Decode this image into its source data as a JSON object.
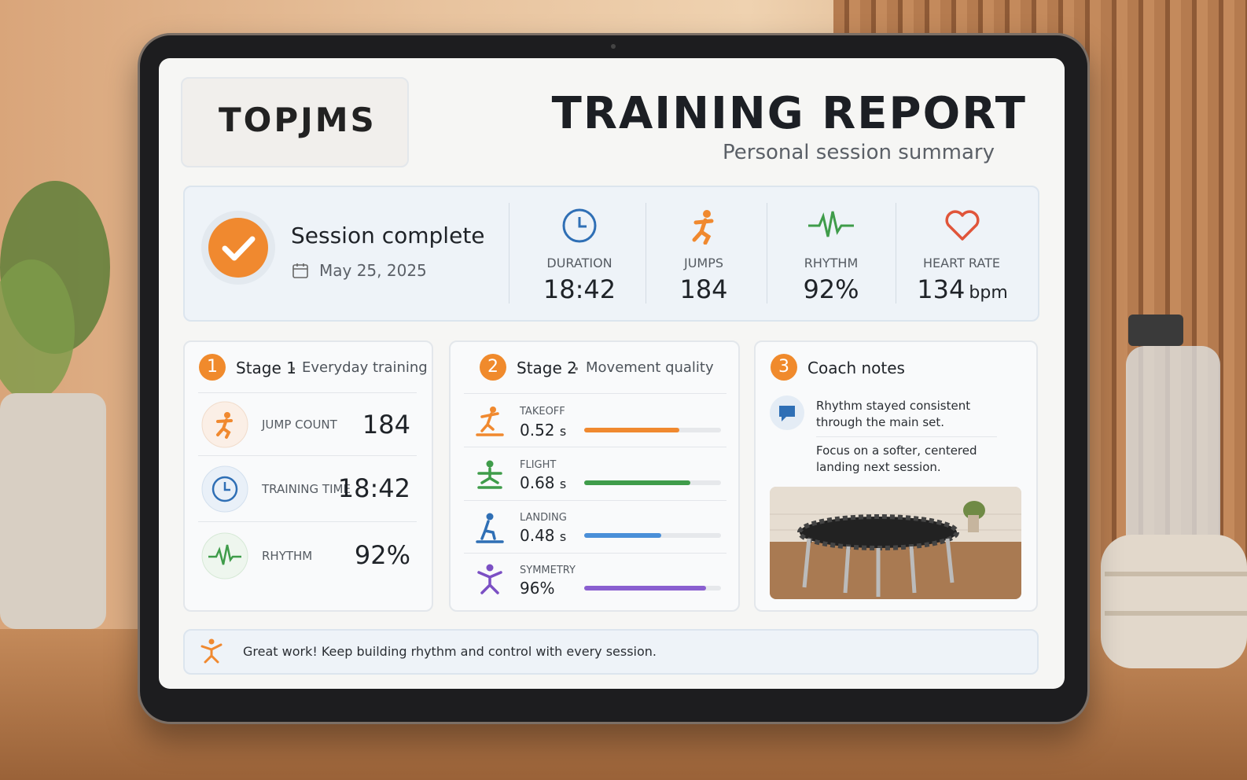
{
  "header": {
    "logo": "TOPJMS",
    "title": "TRAINING REPORT",
    "subtitle": "Personal session summary"
  },
  "summary": {
    "status": "Session complete",
    "date": "May 25, 2025",
    "metrics": [
      {
        "label": "DURATION",
        "value": "18:42"
      },
      {
        "label": "JUMPS",
        "value": "184"
      },
      {
        "label": "RHYTHM",
        "value": "92%"
      },
      {
        "label": "HEART RATE",
        "value": "134",
        "unit": "bpm"
      }
    ]
  },
  "stages": [
    {
      "number": "1",
      "title": "Stage 1",
      "subtitle": "Everyday training",
      "items": [
        {
          "label": "JUMP COUNT",
          "value": "184"
        },
        {
          "label": "TRAINING TIME",
          "value": "18:42"
        },
        {
          "label": "RHYTHM",
          "value": "92%"
        }
      ]
    },
    {
      "number": "2",
      "title": "Stage 2",
      "subtitle": "Movement quality",
      "items": [
        {
          "label": "TAKEOFF",
          "value": "0.52",
          "unit": "s"
        },
        {
          "label": "FLIGHT",
          "value": "0.68",
          "unit": "s"
        },
        {
          "label": "LANDING",
          "value": "0.48",
          "unit": "s"
        },
        {
          "label": "SYMMETRY",
          "value": "96%"
        }
      ]
    }
  ],
  "coach": {
    "number": "3",
    "title": "Coach notes",
    "notes": [
      "Rhythm stayed consistent through the main set.",
      "Focus on a softer, centered landing next session."
    ]
  },
  "footer": {
    "message": "Great work! Keep building rhythm and control with every session."
  }
}
